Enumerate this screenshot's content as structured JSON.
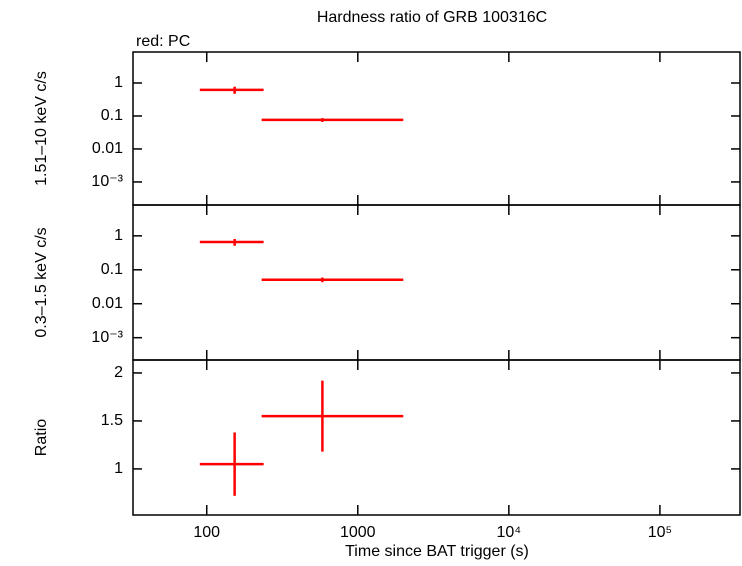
{
  "chart_data": [
    {
      "type": "errorbar",
      "title": "Hardness ratio of GRB 100316C",
      "subtitle": "red: PC",
      "y_label": "1.51–10 keV c/s",
      "color": "#ff0000",
      "ylog": true,
      "ylim": [
        0.0002,
        8.7
      ],
      "yticks": [
        1,
        0.1,
        0.01,
        {
          "value": 0.001,
          "label": "10⁻³"
        }
      ],
      "x": [
        153,
        583
      ],
      "x_min": [
        90,
        231
      ],
      "x_max": [
        238,
        2000
      ],
      "values": [
        0.62,
        0.076
      ],
      "yerr": [
        0.15,
        0.01
      ]
    },
    {
      "type": "errorbar",
      "y_label": "0.3–1.5 keV c/s",
      "color": "#ff0000",
      "ylog": true,
      "ylim": [
        0.00022,
        8.1
      ],
      "yticks": [
        1,
        0.1,
        0.01,
        {
          "value": 0.001,
          "label": "10⁻³"
        }
      ],
      "x": [
        153,
        583
      ],
      "x_min": [
        90,
        231
      ],
      "x_max": [
        238,
        2000
      ],
      "values": [
        0.66,
        0.051
      ],
      "yerr": [
        0.15,
        0.008
      ]
    },
    {
      "type": "errorbar",
      "y_label": "Ratio",
      "x_label": "Time since BAT trigger (s)",
      "color": "#ff0000",
      "xlog": true,
      "xlim": [
        32.5,
        339000
      ],
      "xticks": [
        100,
        1000,
        {
          "value": 10000,
          "label": "10⁴"
        },
        {
          "value": 100000,
          "label": "10⁵"
        }
      ],
      "ylim": [
        0.52,
        2.135
      ],
      "yticks": [
        1,
        1.5,
        2
      ],
      "x": [
        153,
        583
      ],
      "x_min": [
        90,
        231
      ],
      "x_max": [
        238,
        2000
      ],
      "values": [
        1.05,
        1.55
      ],
      "yerr": [
        0.33,
        0.37
      ]
    }
  ]
}
